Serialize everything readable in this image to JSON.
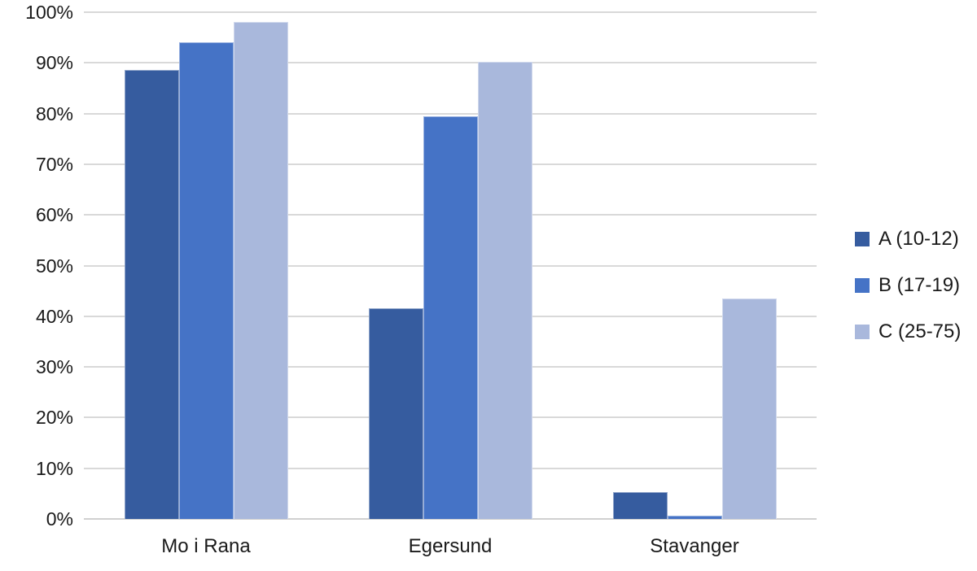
{
  "chart_data": {
    "type": "bar",
    "title": "",
    "xlabel": "",
    "ylabel": "",
    "categories": [
      "Mo i Rana",
      "Egersund",
      "Stavanger"
    ],
    "series": [
      {
        "name": "A (10-12)",
        "color": "#365C9F",
        "values": [
          88.6,
          41.5,
          5.3
        ]
      },
      {
        "name": "B (17-19)",
        "color": "#4573C6",
        "values": [
          94.1,
          79.5,
          0.6
        ]
      },
      {
        "name": "C (25-75)",
        "color": "#A9B8DC",
        "values": [
          98.0,
          90.2,
          43.5
        ]
      }
    ],
    "ylim": [
      0,
      100
    ],
    "ytick_step": 10,
    "yticks": [
      "0%",
      "10%",
      "20%",
      "30%",
      "40%",
      "50%",
      "60%",
      "70%",
      "80%",
      "90%",
      "100%"
    ],
    "grid": true,
    "legend_position": "right"
  },
  "colors": {
    "background": "#ffffff",
    "gridline": "#d9d9d9",
    "axis_line": "#d0d0d0",
    "text": "#1a1a1a"
  }
}
